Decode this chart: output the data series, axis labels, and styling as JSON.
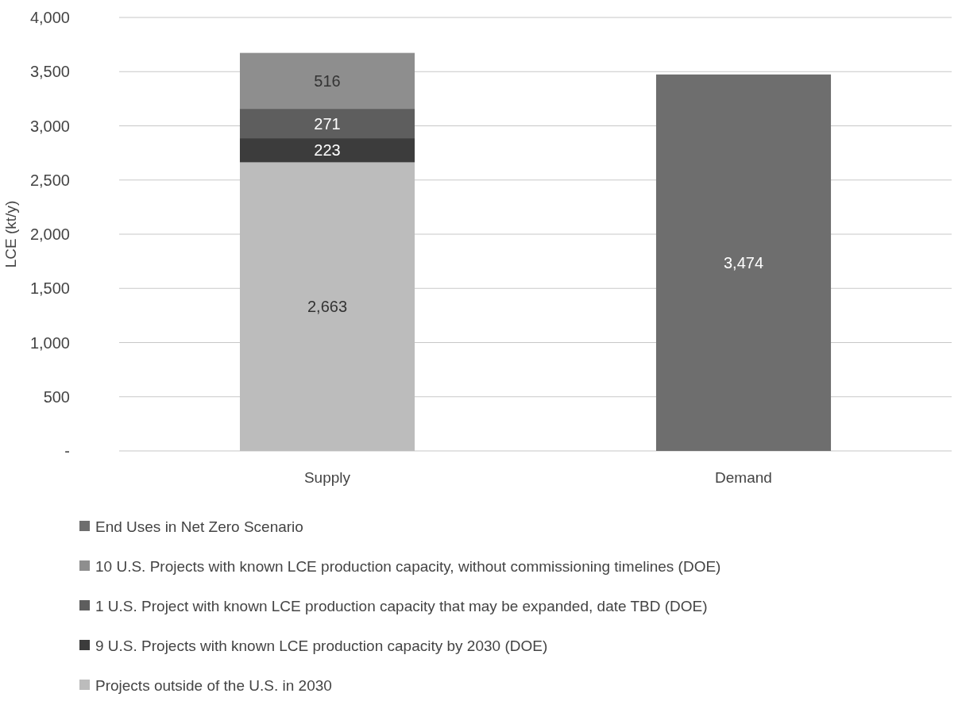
{
  "chart_data": {
    "type": "bar",
    "stacked": true,
    "ylabel": "LCE (kt/y)",
    "categories": [
      "Supply",
      "Demand"
    ],
    "series": [
      {
        "name": "Projects outside of the U.S. in 2030",
        "color": "#bcbcbc",
        "values": [
          2663,
          null
        ],
        "value_labels": [
          "2,663",
          null
        ]
      },
      {
        "name": "9 U.S. Projects with known LCE production capacity by 2030 (DOE)",
        "color": "#3c3c3c",
        "values": [
          223,
          null
        ],
        "value_labels": [
          "223",
          null
        ]
      },
      {
        "name": "1 U.S. Project with known LCE production capacity that may be expanded, date TBD (DOE)",
        "color": "#5e5e5e",
        "values": [
          271,
          null
        ],
        "value_labels": [
          "271",
          null
        ]
      },
      {
        "name": "10 U.S. Projects with known LCE production capacity, without commissioning timelines (DOE)",
        "color": "#8e8e8e",
        "values": [
          516,
          null
        ],
        "value_labels": [
          "516",
          null
        ]
      },
      {
        "name": "End Uses in Net Zero Scenario",
        "color": "#6e6e6e",
        "values": [
          null,
          3474
        ],
        "value_labels": [
          null,
          "3,474"
        ]
      }
    ],
    "ylim": [
      0,
      4000
    ],
    "yticks": [
      {
        "value": 0,
        "label": "-"
      },
      500,
      {
        "value": 1000,
        "label": "1,000"
      },
      {
        "value": 1500,
        "label": "1,500"
      },
      {
        "value": 2000,
        "label": "2,000"
      },
      {
        "value": 2500,
        "label": "2,500"
      },
      {
        "value": 3000,
        "label": "3,000"
      },
      {
        "value": 3500,
        "label": "3,500"
      },
      {
        "value": 4000,
        "label": "4,000"
      }
    ],
    "grid": "y",
    "legend": "bottom"
  }
}
